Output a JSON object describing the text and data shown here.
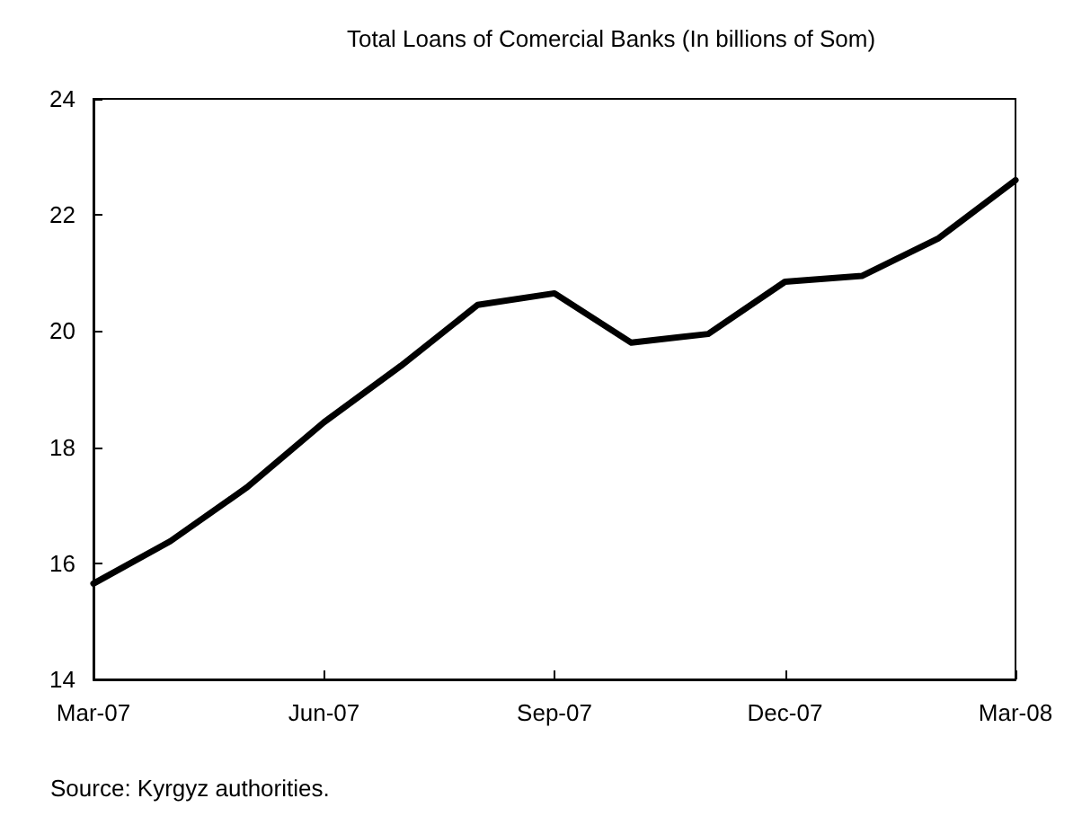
{
  "chart_data": {
    "type": "line",
    "title": "Total Loans of Comercial Banks (In billions of Som)",
    "categories": [
      "Mar-07",
      null,
      null,
      "Jun-07",
      null,
      null,
      "Sep-07",
      null,
      null,
      "Dec-07",
      null,
      null,
      "Mar-08"
    ],
    "series": [
      {
        "color": "#000000",
        "values": [
          15.65,
          16.38,
          17.31,
          18.43,
          19.4,
          20.45,
          20.65,
          19.8,
          19.95,
          20.85,
          20.95,
          21.6,
          22.6
        ]
      }
    ],
    "ylim": [
      14,
      24
    ],
    "yticks": [
      14,
      16,
      18,
      20,
      22,
      24
    ],
    "grid": false,
    "marker": "none",
    "line_style": "solid",
    "annotations": [
      "Source: Kyrgyz authorities."
    ]
  }
}
